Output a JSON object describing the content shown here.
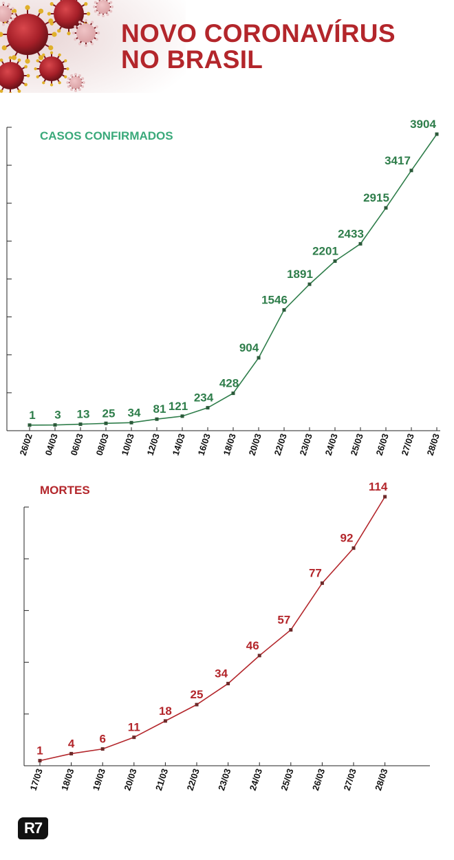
{
  "header": {
    "title_line1": "NOVO CORONAVÍRUS",
    "title_line2": "NO BRASIL"
  },
  "brand": {
    "logo_text": "R7"
  },
  "colors": {
    "title": "#b3262b",
    "cases": "#2e7d4a",
    "cases_title": "#3aa97a",
    "deaths": "#b3262b"
  },
  "chart_data": [
    {
      "type": "line",
      "title": "CASOS CONFIRMADOS",
      "xlabel": "",
      "ylabel": "",
      "categories": [
        "26/02",
        "04/03",
        "06/03",
        "08/03",
        "10/03",
        "12/03",
        "14/03",
        "16/03",
        "18/03",
        "20/03",
        "22/03",
        "23/03",
        "24/03",
        "25/03",
        "26/03",
        "27/03",
        "28/03"
      ],
      "series": [
        {
          "values": [
            1,
            3,
            13,
            25,
            34,
            81,
            121,
            234,
            428,
            904,
            1546,
            1891,
            2201,
            2433,
            2915,
            3417,
            3904
          ]
        }
      ],
      "ylim": [
        0,
        3904
      ],
      "grid": false
    },
    {
      "type": "line",
      "title": "MORTES",
      "xlabel": "",
      "ylabel": "",
      "categories": [
        "17/03",
        "18/03",
        "19/03",
        "20/03",
        "21/03",
        "22/03",
        "23/03",
        "24/03",
        "25/03",
        "26/03",
        "27/03",
        "28/03"
      ],
      "series": [
        {
          "values": [
            1,
            4,
            6,
            11,
            18,
            25,
            34,
            46,
            57,
            77,
            92,
            114
          ]
        }
      ],
      "ylim": [
        0,
        114
      ],
      "grid": false
    }
  ]
}
